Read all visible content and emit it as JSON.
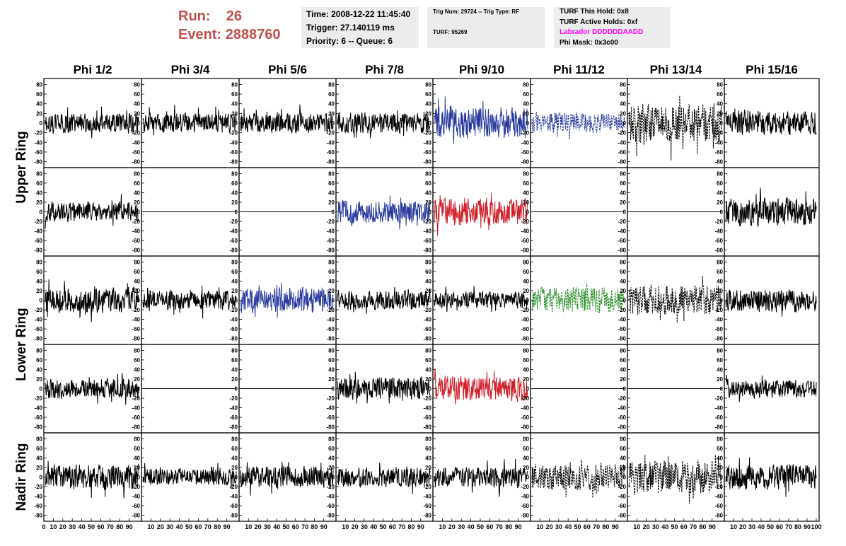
{
  "header": {
    "run_label": "Run:",
    "run_value": "26",
    "event_label": "Event:",
    "event_value": "2888760"
  },
  "info_panel_1": {
    "time": "Time: 2008-12-22 11:45:40",
    "trigger": "Trigger: 27.140119 ms",
    "priority": "Priority: 6 -- Queue: 6"
  },
  "info_panel_2": {
    "trig": "Trig Num: 29724 -- Trig Type: RF",
    "turf": "TURF: 95269"
  },
  "info_panel_3": {
    "this_hold": "TURF This Hold: 0x8",
    "active_holds": "TURF Active Holds: 0xf",
    "labrador": "Labrador DDDDDDAADD",
    "phi_mask": "Phi Mask: 0x3c00"
  },
  "colors": {
    "header_text": "#c0504d",
    "panel_bg": "#ececec",
    "labrador_text": "#ff00ff",
    "trace_black": "#000000",
    "trace_blue": "#2b3b9e",
    "trace_red": "#d0202a",
    "trace_green": "#1f8a1f"
  },
  "chart_data": {
    "type": "line",
    "title": "",
    "column_labels": [
      "Phi 1/2",
      "Phi 3/4",
      "Phi 5/6",
      "Phi 7/8",
      "Phi 9/10",
      "Phi 11/12",
      "Phi 13/14",
      "Phi 15/16"
    ],
    "row_labels": [
      "Upper Ring",
      "Lower Ring",
      "Nadir Ring"
    ],
    "ylim": [
      -85,
      85
    ],
    "yticks": [
      -80,
      -60,
      -40,
      -20,
      0,
      20,
      40,
      60,
      80
    ],
    "xlim": [
      0,
      100
    ],
    "xticks": [
      0,
      10,
      20,
      30,
      40,
      50,
      60,
      70,
      80,
      90,
      100
    ],
    "samples_per_trace": 260,
    "grid": false,
    "legend": "none",
    "trace_rows": [
      {
        "ring": "Upper Ring",
        "channels": [
          {
            "style": "solid",
            "color": "black",
            "amplitude": 14
          },
          {
            "style": "solid",
            "color": "black",
            "amplitude": 14
          },
          {
            "style": "solid",
            "color": "black",
            "amplitude": 14
          },
          {
            "style": "solid",
            "color": "black",
            "amplitude": 14
          },
          {
            "style": "solid",
            "color": "blue",
            "amplitude": 22
          },
          {
            "style": "dashed",
            "color": "blue",
            "amplitude": 14
          },
          {
            "style": "dashed",
            "color": "black",
            "amplitude": 28
          },
          {
            "style": "solid",
            "color": "black",
            "amplitude": 17
          }
        ]
      },
      {
        "ring": "Upper Ring",
        "channels": [
          {
            "style": "solid",
            "color": "black",
            "amplitude": 14
          },
          {
            "style": "flat",
            "color": "black",
            "amplitude": 0
          },
          {
            "style": "flat",
            "color": "black",
            "amplitude": 0
          },
          {
            "style": "solid",
            "color": "blue",
            "amplitude": 16
          },
          {
            "style": "solid",
            "color": "red",
            "amplitude": 19
          },
          {
            "style": "flat",
            "color": "black",
            "amplitude": 0
          },
          {
            "style": "flat",
            "color": "black",
            "amplitude": 0
          },
          {
            "style": "solid",
            "color": "black",
            "amplitude": 20
          }
        ]
      },
      {
        "ring": "Lower Ring",
        "channels": [
          {
            "style": "solid",
            "color": "black",
            "amplitude": 18
          },
          {
            "style": "solid",
            "color": "black",
            "amplitude": 14
          },
          {
            "style": "solid",
            "color": "blue",
            "amplitude": 18
          },
          {
            "style": "solid",
            "color": "black",
            "amplitude": 14
          },
          {
            "style": "solid",
            "color": "black",
            "amplitude": 12
          },
          {
            "style": "dashed",
            "color": "green",
            "amplitude": 18
          },
          {
            "style": "dashed",
            "color": "black",
            "amplitude": 22
          },
          {
            "style": "solid",
            "color": "black",
            "amplitude": 16
          }
        ]
      },
      {
        "ring": "Lower Ring",
        "channels": [
          {
            "style": "solid",
            "color": "black",
            "amplitude": 14
          },
          {
            "style": "flat",
            "color": "black",
            "amplitude": 0
          },
          {
            "style": "flat",
            "color": "black",
            "amplitude": 0
          },
          {
            "style": "solid",
            "color": "black",
            "amplitude": 16
          },
          {
            "style": "solid",
            "color": "red",
            "amplitude": 18
          },
          {
            "style": "flat",
            "color": "black",
            "amplitude": 0
          },
          {
            "style": "flat",
            "color": "black",
            "amplitude": 0
          },
          {
            "style": "solid",
            "color": "black",
            "amplitude": 13
          }
        ]
      },
      {
        "ring": "Nadir Ring",
        "channels": [
          {
            "style": "solid",
            "color": "black",
            "amplitude": 18
          },
          {
            "style": "solid",
            "color": "black",
            "amplitude": 12
          },
          {
            "style": "solid",
            "color": "black",
            "amplitude": 15
          },
          {
            "style": "solid",
            "color": "black",
            "amplitude": 14
          },
          {
            "style": "solid",
            "color": "black",
            "amplitude": 14
          },
          {
            "style": "dashed",
            "color": "black",
            "amplitude": 18
          },
          {
            "style": "dashed",
            "color": "black",
            "amplitude": 24
          },
          {
            "style": "solid",
            "color": "black",
            "amplitude": 18
          }
        ]
      }
    ]
  }
}
